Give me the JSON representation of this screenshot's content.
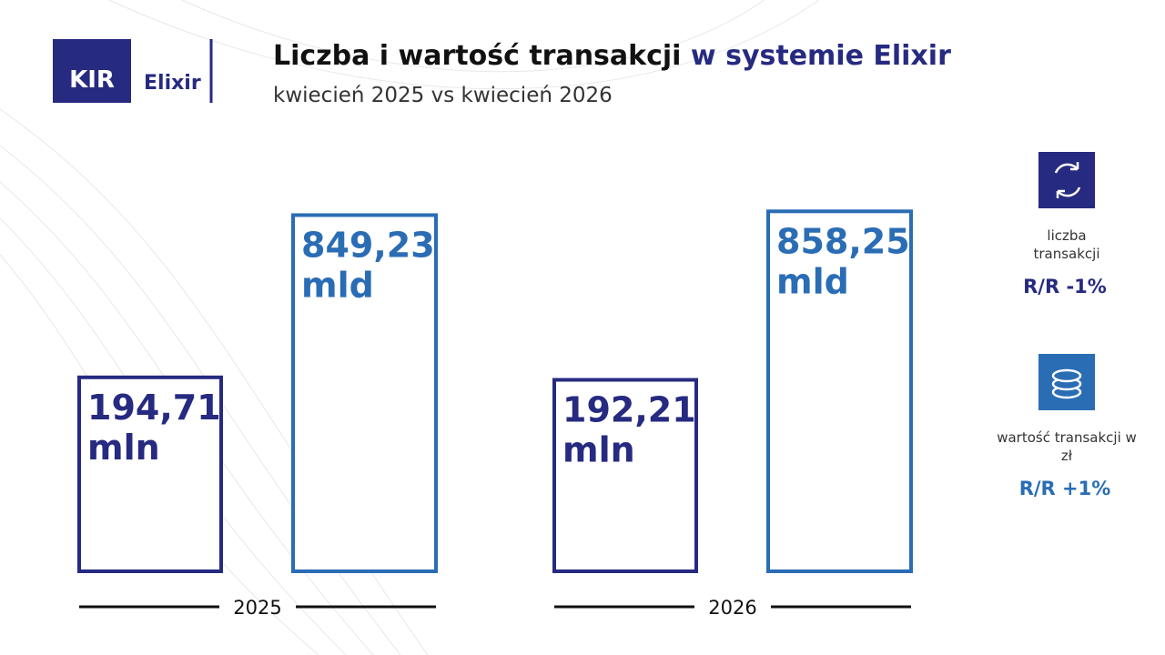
{
  "logo": {
    "mark": "KIR",
    "name": "Elixir"
  },
  "chart_data": {
    "type": "bar",
    "title": "Liczba i wartość transakcji",
    "title_highlight": "w systemie Elixir",
    "subtitle": "kwiecień 2025 vs kwiecień 2026",
    "categories": [
      "2025",
      "2026"
    ],
    "series": [
      {
        "name": "liczba transakcji",
        "color": "#262a80",
        "values": [
          194.71,
          192.21
        ],
        "value_labels": [
          "194,71 mln",
          "192,21 mln"
        ],
        "change": "R/R -1%"
      },
      {
        "name": "wartość transakcji w zł",
        "color": "#2a6db5",
        "axis": "y2",
        "values": [
          849.23,
          858.25
        ],
        "value_labels": [
          "849,23 mld",
          "858,25 mld"
        ],
        "change": "R/R +1%"
      }
    ],
    "ylim": [
      0,
      400
    ],
    "y2lim": [
      0,
      950
    ]
  }
}
